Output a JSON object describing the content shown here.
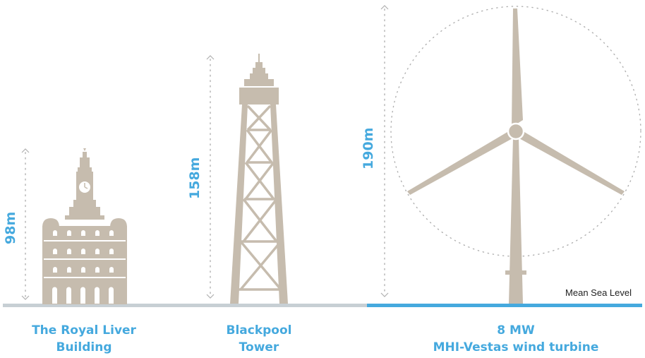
{
  "colors": {
    "structure": "#c6bcae",
    "accent_blue": "#45a9de",
    "ground_grey": "#c7cfd4",
    "guide_dots": "#b0b0b0"
  },
  "structures": [
    {
      "height_label": "98m",
      "height_m": 98,
      "name_line1": "The Royal Liver",
      "name_line2": "Building"
    },
    {
      "height_label": "158m",
      "height_m": 158,
      "name_line1": "Blackpool",
      "name_line2": "Tower"
    },
    {
      "height_label": "190m",
      "height_m": 190,
      "name_line1": "8 MW",
      "name_line2": "MHI-Vestas wind turbine"
    }
  ],
  "sea_level_label": "Mean Sea Level"
}
